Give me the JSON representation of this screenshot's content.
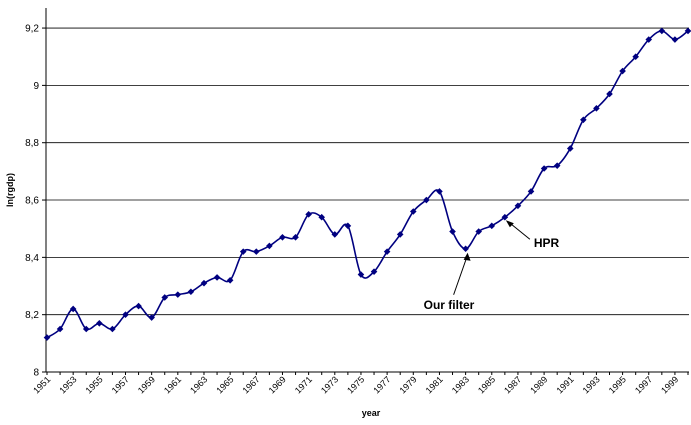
{
  "chart_data": {
    "type": "line",
    "xlabel": "year",
    "ylabel": "ln(rgdp)",
    "ylim": [
      8,
      9.27
    ],
    "y_ticks": [
      "8",
      "8,2",
      "8,4",
      "8,6",
      "8,8",
      "9",
      "9,2"
    ],
    "y_tick_values": [
      8,
      8.2,
      8.4,
      8.6,
      8.8,
      9,
      9.2
    ],
    "x_tick_labels": [
      "1951",
      "1953",
      "1955",
      "1957",
      "1959",
      "1961",
      "1963",
      "1965",
      "1967",
      "1969",
      "1971",
      "1973",
      "1975",
      "1977",
      "1979",
      "1981",
      "1983",
      "1985",
      "1987",
      "1989",
      "1991",
      "1993",
      "1995",
      "1997",
      "1999"
    ],
    "grid": "horizontal",
    "legend": "none",
    "line_color": "#000080",
    "series": [
      {
        "x": [
          1951,
          1952,
          1953,
          1954,
          1955,
          1956,
          1957,
          1958,
          1959,
          1960,
          1961,
          1962,
          1963,
          1964,
          1965,
          1966,
          1967,
          1968,
          1969,
          1970,
          1971,
          1972,
          1973,
          1974,
          1975,
          1976,
          1977,
          1978,
          1979,
          1980,
          1981,
          1982,
          1983,
          1984,
          1985,
          1986,
          1987,
          1988,
          1989,
          1990,
          1991,
          1992,
          1993,
          1994,
          1995,
          1996,
          1997,
          1998,
          1999,
          2000
        ],
        "values": [
          8.12,
          8.15,
          8.22,
          8.15,
          8.17,
          8.15,
          8.2,
          8.23,
          8.19,
          8.26,
          8.27,
          8.28,
          8.31,
          8.33,
          8.32,
          8.42,
          8.42,
          8.44,
          8.47,
          8.47,
          8.55,
          8.54,
          8.48,
          8.51,
          8.34,
          8.35,
          8.42,
          8.48,
          8.56,
          8.6,
          8.63,
          8.49,
          8.43,
          8.49,
          8.51,
          8.54,
          8.58,
          8.63,
          8.71,
          8.72,
          8.78,
          8.88,
          8.92,
          8.97,
          9.05,
          9.1,
          9.16,
          9.19,
          9.16,
          9.19
        ]
      }
    ],
    "annotations": [
      {
        "text": "HPR",
        "x": 1986,
        "y": 8.54
      },
      {
        "text": "Our filter",
        "x": 1983,
        "y": 8.43
      }
    ]
  }
}
